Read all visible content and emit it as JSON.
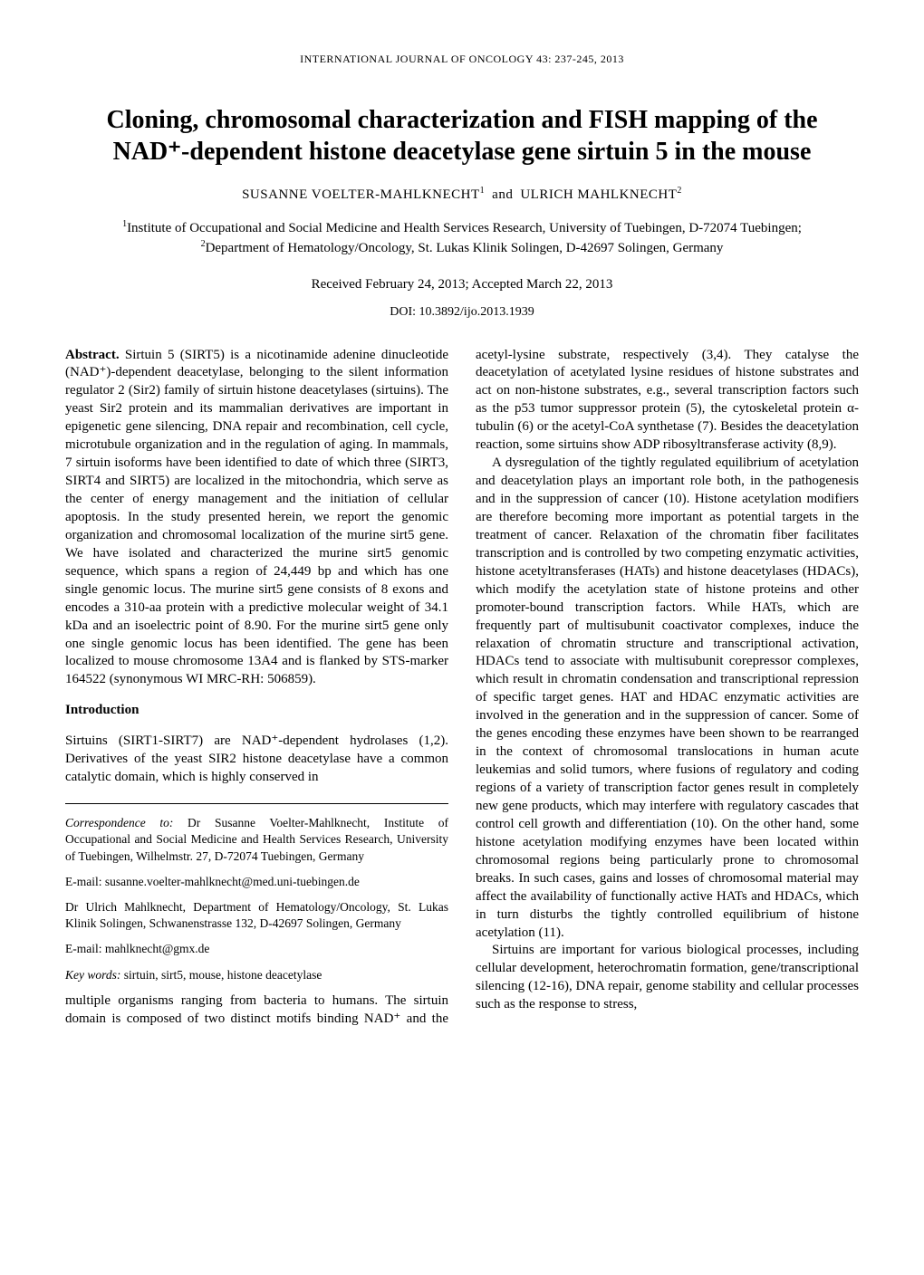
{
  "running_head": "INTERNATIONAL JOURNAL OF ONCOLOGY  43:  237-245,  2013",
  "title_line1": "Cloning, chromosomal characterization and FISH mapping of the",
  "title_line2": "NAD⁺-dependent histone deacetylase gene sirtuin 5 in the mouse",
  "authors_html": "SUSANNE VOELTER-MAHLKNECHT<sup>1</sup> and ULRICH MAHLKNECHT<sup>2</sup>",
  "affil_html": "<sup>1</sup>Institute of Occupational and Social Medicine and Health Services Research, University of Tuebingen, D-72074 Tuebingen;<br><sup>2</sup>Department of Hematology/Oncology, St. Lukas Klinik Solingen, D-42697 Solingen, Germany",
  "received": "Received February 24, 2013;  Accepted March 22, 2013",
  "doi": "DOI: 10.3892/ijo.2013.1939",
  "abstract_label": "Abstract.",
  "abstract_body": " Sirtuin 5 (SIRT5) is a nicotinamide adenine dinucleotide (NAD⁺)-dependent deacetylase, belonging to the silent information regulator 2 (Sir2) family of sirtuin histone deacetylases (sirtuins). The yeast Sir2 protein and its mammalian derivatives are important in epigenetic gene silencing, DNA repair and recombination, cell cycle, microtubule organization and in the regulation of aging. In mammals, 7 sirtuin isoforms have been identified to date of which three (SIRT3, SIRT4 and SIRT5) are localized in the mitochondria, which serve as the center of energy management and the initiation of cellular apoptosis. In the study presented herein, we report the genomic organization and chromosomal localization of the murine sirt5 gene. We have isolated and characterized the murine sirt5 genomic sequence, which spans a region of 24,449 bp and which has one single genomic locus. The murine sirt5 gene consists of 8 exons and encodes a 310-aa protein with a predictive molecular weight of 34.1 kDa and an isoelectric point of 8.90. For the murine sirt5 gene only one single genomic locus has been identified. The gene has been localized to mouse chromosome 13A4 and is flanked by STS-marker 164522 (synonymous WI MRC-RH: 506859).",
  "intro_head": "Introduction",
  "intro_p1": "Sirtuins (SIRT1-SIRT7) are NAD⁺-dependent hydrolases (1,2). Derivatives of the yeast SIR2 histone deacetylase have a common catalytic domain, which is highly conserved in",
  "corr_label": "Correspondence to:",
  "corr1_body": " Dr Susanne Voelter-Mahlknecht, Institute of Occupational and Social Medicine and Health Services Research, University of Tuebingen, Wilhelmstr. 27, D-72074 Tuebingen, Germany",
  "corr1_email": "E-mail: susanne.voelter-mahlknecht@med.uni-tuebingen.de",
  "corr2_body": "Dr Ulrich Mahlknecht, Department of Hematology/Oncology, St. Lukas Klinik Solingen, Schwanenstrasse 132, D-42697 Solingen, Germany",
  "corr2_email": "E-mail: mahlknecht@gmx.de",
  "kw_label": "Key words:",
  "kw_body": " sirtuin, sirt5, mouse, histone deacetylase",
  "col2_p1": "multiple organisms ranging from bacteria to humans. The sirtuin domain is composed of two distinct motifs binding NAD⁺ and the acetyl-lysine substrate, respectively (3,4). They catalyse the deacetylation of acetylated lysine residues of histone substrates and act on non-histone substrates, e.g., several transcription factors such as the p53 tumor suppressor protein (5), the cytoskeletal protein α-tubulin (6) or the acetyl-CoA synthetase (7). Besides the deacetylation reaction, some sirtuins show ADP ribosyltransferase activity (8,9).",
  "col2_p2": "A dysregulation of the tightly regulated equilibrium of acetylation and deacetylation plays an important role both, in the pathogenesis and in the suppression of cancer (10). Histone acetylation modifiers are therefore becoming more important as potential targets in the treatment of cancer. Relaxation of the chromatin fiber facilitates transcription and is controlled by two competing enzymatic activities, histone acetyltransferases (HATs) and histone deacetylases (HDACs), which modify the acetylation state of histone proteins and other promoter-bound transcription factors. While HATs, which are frequently part of multisubunit coactivator complexes, induce the relaxation of chromatin structure and transcriptional activation, HDACs tend to associate with multisubunit corepressor complexes, which result in chromatin condensation and transcriptional repression of specific target genes. HAT and HDAC enzymatic activities are involved in the generation and in the suppression of cancer. Some of the genes encoding these enzymes have been shown to be rearranged in the context of chromosomal translocations in human acute leukemias and solid tumors, where fusions of regulatory and coding regions of a variety of transcription factor genes result in completely new gene products, which may interfere with regulatory cascades that control cell growth and differentiation (10). On the other hand, some histone acetylation modifying enzymes have been located within chromosomal regions being particularly prone to chromosomal breaks. In such cases, gains and losses of chromosomal material may affect the availability of functionally active HATs and HDACs, which in turn disturbs the tightly controlled equilibrium of histone acetylation (11).",
  "col2_p3": "Sirtuins are important for various biological processes, including cellular development, heterochromatin formation, gene/transcriptional silencing (12-16), DNA repair, genome stability and cellular processes such as the response to stress,"
}
